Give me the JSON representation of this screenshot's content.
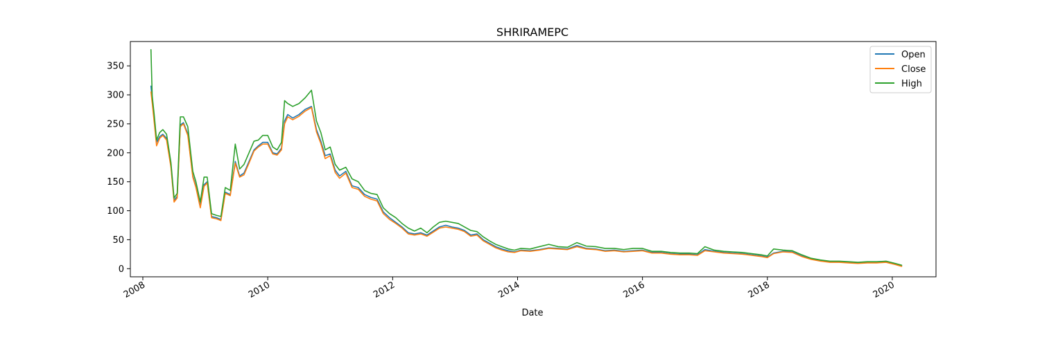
{
  "chart_data": {
    "type": "line",
    "title": "SHRIRAMEPC",
    "xlabel": "Date",
    "ylabel": "",
    "x_range": [
      2007.8,
      2020.7
    ],
    "ylim": [
      -14,
      392
    ],
    "x_ticks": [
      {
        "value": 2008,
        "label": "2008"
      },
      {
        "value": 2010,
        "label": "2010"
      },
      {
        "value": 2012,
        "label": "2012"
      },
      {
        "value": 2014,
        "label": "2014"
      },
      {
        "value": 2016,
        "label": "2016"
      },
      {
        "value": 2018,
        "label": "2018"
      },
      {
        "value": 2020,
        "label": "2020"
      }
    ],
    "y_ticks": [
      {
        "value": 0,
        "label": "0"
      },
      {
        "value": 50,
        "label": "50"
      },
      {
        "value": 100,
        "label": "100"
      },
      {
        "value": 150,
        "label": "150"
      },
      {
        "value": 200,
        "label": "200"
      },
      {
        "value": 250,
        "label": "250"
      },
      {
        "value": 300,
        "label": "300"
      },
      {
        "value": 350,
        "label": "350"
      }
    ],
    "grid": false,
    "legend_position": "top-right",
    "x": [
      2008.13,
      2008.15,
      2008.18,
      2008.22,
      2008.27,
      2008.32,
      2008.38,
      2008.45,
      2008.5,
      2008.55,
      2008.6,
      2008.65,
      2008.72,
      2008.8,
      2008.85,
      2008.92,
      2008.98,
      2009.03,
      2009.1,
      2009.18,
      2009.25,
      2009.32,
      2009.4,
      2009.48,
      2009.55,
      2009.62,
      2009.7,
      2009.78,
      2009.85,
      2009.92,
      2010.0,
      2010.08,
      2010.15,
      2010.22,
      2010.27,
      2010.32,
      2010.4,
      2010.5,
      2010.6,
      2010.7,
      2010.78,
      2010.85,
      2010.92,
      2011.0,
      2011.08,
      2011.15,
      2011.25,
      2011.35,
      2011.45,
      2011.55,
      2011.65,
      2011.75,
      2011.85,
      2011.95,
      2012.05,
      2012.15,
      2012.25,
      2012.35,
      2012.45,
      2012.55,
      2012.65,
      2012.75,
      2012.85,
      2012.95,
      2013.05,
      2013.15,
      2013.25,
      2013.35,
      2013.45,
      2013.55,
      2013.65,
      2013.75,
      2013.85,
      2013.95,
      2014.05,
      2014.2,
      2014.35,
      2014.5,
      2014.65,
      2014.8,
      2014.95,
      2015.1,
      2015.25,
      2015.4,
      2015.55,
      2015.7,
      2015.85,
      2016.0,
      2016.15,
      2016.3,
      2016.45,
      2016.6,
      2016.75,
      2016.88,
      2017.0,
      2017.15,
      2017.3,
      2017.45,
      2017.6,
      2017.75,
      2017.9,
      2018.0,
      2018.1,
      2018.25,
      2018.4,
      2018.55,
      2018.7,
      2018.85,
      2019.0,
      2019.15,
      2019.3,
      2019.45,
      2019.6,
      2019.75,
      2019.9,
      2020.05,
      2020.15
    ],
    "series": [
      {
        "name": "Open",
        "color": "#1f77b4",
        "values": [
          315,
          292,
          262,
          218,
          228,
          232,
          225,
          178,
          118,
          125,
          248,
          252,
          233,
          160,
          142,
          108,
          145,
          150,
          90,
          88,
          85,
          132,
          128,
          185,
          160,
          165,
          185,
          205,
          212,
          218,
          218,
          200,
          198,
          208,
          255,
          266,
          260,
          266,
          275,
          280,
          240,
          220,
          195,
          198,
          170,
          160,
          168,
          143,
          140,
          128,
          123,
          120,
          98,
          88,
          80,
          72,
          62,
          60,
          62,
          58,
          65,
          72,
          75,
          72,
          70,
          66,
          58,
          60,
          50,
          44,
          38,
          34,
          31,
          29,
          32,
          31,
          33,
          36,
          35,
          34,
          40,
          35,
          34,
          31,
          32,
          30,
          31,
          32,
          28,
          28,
          26,
          25,
          25,
          24,
          33,
          30,
          28,
          27,
          26,
          24,
          22,
          20,
          27,
          30,
          29,
          22,
          17,
          14,
          12,
          12,
          11,
          10,
          11,
          11,
          12,
          8,
          5
        ]
      },
      {
        "name": "Close",
        "color": "#ff7f0e",
        "values": [
          305,
          286,
          255,
          212,
          225,
          230,
          222,
          175,
          115,
          122,
          245,
          250,
          230,
          158,
          140,
          105,
          142,
          148,
          88,
          86,
          83,
          130,
          126,
          182,
          158,
          162,
          182,
          203,
          210,
          215,
          215,
          198,
          196,
          205,
          250,
          262,
          257,
          263,
          272,
          278,
          236,
          216,
          190,
          195,
          166,
          156,
          165,
          140,
          137,
          125,
          120,
          117,
          95,
          85,
          78,
          70,
          60,
          58,
          60,
          56,
          63,
          70,
          72,
          70,
          68,
          64,
          56,
          58,
          48,
          42,
          36,
          32,
          29,
          28,
          31,
          30,
          32,
          35,
          34,
          33,
          38,
          34,
          33,
          30,
          31,
          29,
          30,
          31,
          27,
          27,
          25,
          24,
          24,
          23,
          31,
          29,
          27,
          26,
          25,
          23,
          21,
          19,
          26,
          29,
          28,
          21,
          16,
          13,
          11,
          11,
          10,
          9,
          10,
          10,
          11,
          7,
          4
        ]
      },
      {
        "name": "High",
        "color": "#2ca02c",
        "values": [
          378,
          298,
          268,
          222,
          235,
          240,
          232,
          183,
          122,
          130,
          262,
          262,
          245,
          168,
          150,
          115,
          158,
          158,
          95,
          92,
          90,
          140,
          135,
          215,
          172,
          180,
          200,
          220,
          222,
          230,
          230,
          210,
          205,
          218,
          290,
          285,
          280,
          285,
          295,
          308,
          255,
          235,
          205,
          210,
          180,
          170,
          175,
          155,
          150,
          135,
          130,
          128,
          105,
          95,
          88,
          78,
          70,
          65,
          70,
          62,
          72,
          80,
          82,
          80,
          78,
          72,
          66,
          64,
          55,
          48,
          42,
          38,
          34,
          32,
          35,
          34,
          38,
          42,
          38,
          37,
          45,
          39,
          38,
          35,
          35,
          33,
          35,
          35,
          30,
          30,
          28,
          27,
          27,
          26,
          38,
          32,
          30,
          29,
          28,
          26,
          24,
          22,
          34,
          32,
          31,
          24,
          18,
          15,
          13,
          13,
          12,
          11,
          12,
          12,
          13,
          9,
          6
        ]
      }
    ]
  }
}
